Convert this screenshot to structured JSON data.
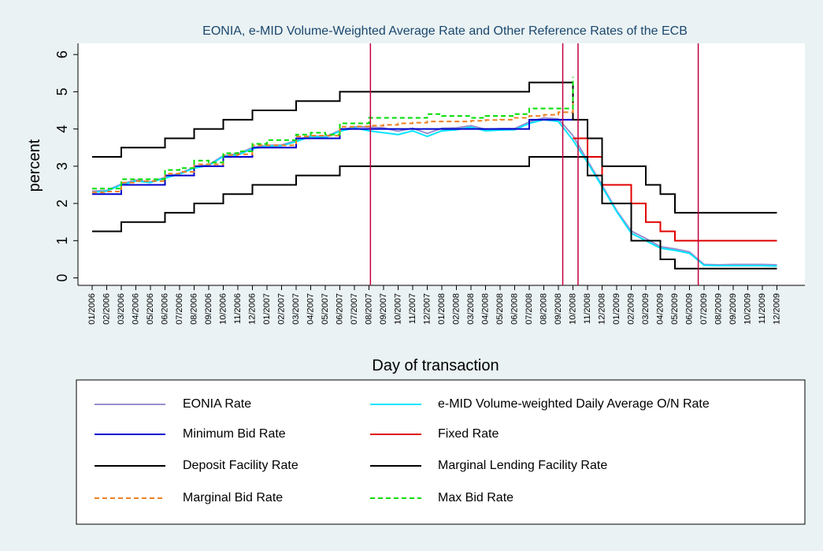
{
  "chart_data": {
    "type": "line",
    "title": "EONIA, e-MID Volume-Weighted Average Rate and Other Reference Rates of the ECB",
    "x_label": "Day of transaction",
    "y_label": "percent",
    "categories": [
      "01/2006",
      "02/2006",
      "03/2006",
      "04/2006",
      "05/2006",
      "06/2006",
      "07/2006",
      "08/2006",
      "09/2006",
      "10/2006",
      "11/2006",
      "12/2006",
      "01/2007",
      "02/2007",
      "03/2007",
      "04/2007",
      "05/2007",
      "06/2007",
      "07/2007",
      "08/2007",
      "09/2007",
      "10/2007",
      "11/2007",
      "12/2007",
      "01/2008",
      "02/2008",
      "03/2008",
      "04/2008",
      "05/2008",
      "06/2008",
      "07/2008",
      "08/2008",
      "09/2008",
      "10/2008",
      "11/2008",
      "12/2008",
      "01/2009",
      "02/2009",
      "03/2009",
      "04/2009",
      "05/2009",
      "06/2009",
      "07/2009",
      "08/2009",
      "09/2009",
      "10/2009",
      "11/2009",
      "12/2009"
    ],
    "ylim": [
      -0.2,
      6.3
    ],
    "yticks": [
      0,
      1,
      2,
      3,
      4,
      5,
      6
    ],
    "event_lines": {
      "color": "#c0003c",
      "x": [
        19.1,
        32.3,
        33.35,
        41.6
      ]
    },
    "series": [
      {
        "name": "EONIA Rate",
        "color": "#9a8fd0",
        "values": [
          2.33,
          2.35,
          2.52,
          2.63,
          2.58,
          2.7,
          2.81,
          2.97,
          3.04,
          3.28,
          3.33,
          3.5,
          3.56,
          3.57,
          3.69,
          3.82,
          3.79,
          3.96,
          4.06,
          4.05,
          4.03,
          3.94,
          4.02,
          3.88,
          4.02,
          4.03,
          4.09,
          3.99,
          4.01,
          4.01,
          4.19,
          4.3,
          4.27,
          3.82,
          3.15,
          2.49,
          1.81,
          1.26,
          1.06,
          0.84,
          0.78,
          0.7,
          0.36,
          0.35,
          0.36,
          0.36,
          0.36,
          0.35
        ]
      },
      {
        "name": "e-MID Volume-weighted Daily Average O/N Rate",
        "color": "#00e5ff",
        "values": [
          2.3,
          2.33,
          2.5,
          2.6,
          2.56,
          2.68,
          2.79,
          2.95,
          3.02,
          3.26,
          3.3,
          3.47,
          3.54,
          3.55,
          3.66,
          3.8,
          3.77,
          3.94,
          4.03,
          3.95,
          3.9,
          3.85,
          3.95,
          3.8,
          3.95,
          3.98,
          4.05,
          3.95,
          3.97,
          3.98,
          4.15,
          4.25,
          4.2,
          3.7,
          3.1,
          2.45,
          1.78,
          1.2,
          1.0,
          0.8,
          0.74,
          0.66,
          0.34,
          0.33,
          0.33,
          0.33,
          0.33,
          0.32
        ]
      },
      {
        "name": "Minimum Bid Rate",
        "color": "#0000cc",
        "step": true,
        "values": [
          2.25,
          2.25,
          2.5,
          2.5,
          2.5,
          2.75,
          2.75,
          3,
          3,
          3.25,
          3.25,
          3.5,
          3.5,
          3.5,
          3.75,
          3.75,
          3.75,
          4,
          4,
          4,
          4,
          4,
          4,
          4,
          4,
          4,
          4,
          4,
          4,
          4,
          4.25,
          4.25,
          4.25,
          4.25,
          null,
          null,
          null,
          null,
          null,
          null,
          null,
          null,
          null,
          null,
          null,
          null,
          null,
          null
        ]
      },
      {
        "name": "Fixed Rate",
        "color": "#e00000",
        "step": true,
        "values": [
          null,
          null,
          null,
          null,
          null,
          null,
          null,
          null,
          null,
          null,
          null,
          null,
          null,
          null,
          null,
          null,
          null,
          null,
          null,
          null,
          null,
          null,
          null,
          null,
          null,
          null,
          null,
          null,
          null,
          null,
          null,
          null,
          null,
          3.75,
          3.25,
          2.5,
          2.5,
          2,
          1.5,
          1.25,
          1,
          1,
          1,
          1,
          1,
          1,
          1,
          1
        ]
      },
      {
        "name": "Deposit Facility Rate",
        "color": "#000000",
        "step": true,
        "values": [
          1.25,
          1.25,
          1.5,
          1.5,
          1.5,
          1.75,
          1.75,
          2,
          2,
          2.25,
          2.25,
          2.5,
          2.5,
          2.5,
          2.75,
          2.75,
          2.75,
          3,
          3,
          3,
          3,
          3,
          3,
          3,
          3,
          3,
          3,
          3,
          3,
          3,
          3.25,
          3.25,
          3.25,
          3.25,
          2.75,
          2,
          2,
          1,
          1,
          0.5,
          0.25,
          0.25,
          0.25,
          0.25,
          0.25,
          0.25,
          0.25,
          0.25
        ]
      },
      {
        "name": "Marginal Lending Facility Rate",
        "color": "#000000",
        "step": true,
        "values": [
          3.25,
          3.25,
          3.5,
          3.5,
          3.5,
          3.75,
          3.75,
          4,
          4,
          4.25,
          4.25,
          4.5,
          4.5,
          4.5,
          4.75,
          4.75,
          4.75,
          5,
          5,
          5,
          5,
          5,
          5,
          5,
          5,
          5,
          5,
          5,
          5,
          5,
          5.25,
          5.25,
          5.25,
          4.25,
          3.75,
          3,
          3,
          3,
          2.5,
          2.25,
          1.75,
          1.75,
          1.75,
          1.75,
          1.75,
          1.75,
          1.75,
          1.75
        ]
      },
      {
        "name": "Marginal Bid Rate",
        "color": "#f08020",
        "dash": "6 4",
        "step": true,
        "values": [
          2.3,
          2.32,
          2.56,
          2.6,
          2.6,
          2.8,
          2.85,
          3.05,
          3.05,
          3.3,
          3.32,
          3.56,
          3.56,
          3.56,
          3.8,
          3.82,
          3.82,
          4.06,
          4.07,
          4.09,
          4.11,
          4.15,
          4.17,
          4.2,
          4.2,
          4.2,
          4.22,
          4.24,
          4.25,
          4.3,
          4.35,
          4.38,
          4.45,
          4.7,
          null,
          null,
          null,
          null,
          null,
          null,
          null,
          null,
          null,
          null,
          null,
          null,
          null,
          null
        ]
      },
      {
        "name": "Max Bid Rate",
        "color": "#00dd00",
        "dash": "6 4",
        "step": true,
        "values": [
          2.4,
          2.4,
          2.65,
          2.65,
          2.65,
          2.9,
          2.95,
          3.15,
          3.1,
          3.35,
          3.4,
          3.6,
          3.7,
          3.7,
          3.85,
          3.9,
          3.85,
          4.15,
          4.15,
          4.3,
          4.3,
          4.3,
          4.3,
          4.4,
          4.35,
          4.35,
          4.3,
          4.35,
          4.35,
          4.4,
          4.55,
          4.55,
          4.55,
          5.4,
          null,
          null,
          null,
          null,
          null,
          null,
          null,
          null,
          null,
          null,
          null,
          null,
          null,
          null
        ]
      }
    ]
  }
}
